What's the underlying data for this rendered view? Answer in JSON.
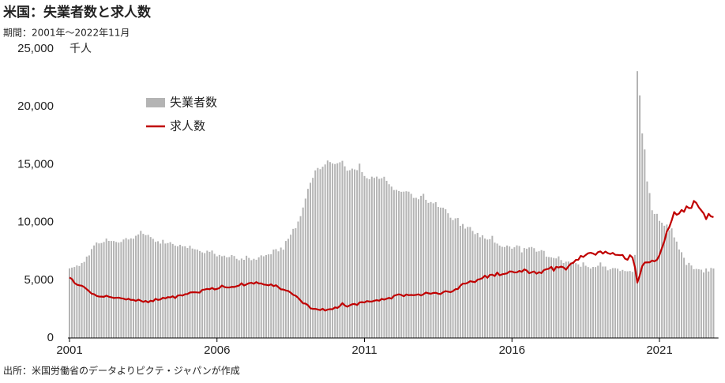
{
  "chart_data": {
    "type": "bar",
    "title": "米国：失業者数と求人数",
    "subtitle": "期間：2001年～2022年11月",
    "y_unit": "千人",
    "source": "出所：米国労働省のデータよりピクテ・ジャパンが作成",
    "legend": "upper left",
    "xlim": [
      2001,
      2023
    ],
    "xticks": [
      2001,
      2006,
      2011,
      2016,
      2021
    ],
    "ylim": [
      0,
      25000
    ],
    "yticks": [
      0,
      {
        "value": 5000,
        "label": "5,000"
      },
      {
        "value": 10000,
        "label": "10,000"
      },
      {
        "value": 15000,
        "label": "15,000"
      },
      {
        "value": 20000,
        "label": "20,000"
      },
      {
        "value": 25000,
        "label": "25,000"
      }
    ],
    "x": [
      2001,
      2001.083,
      2001.167,
      2001.25,
      2001.333,
      2001.417,
      2001.5,
      2001.583,
      2001.667,
      2001.75,
      2001.833,
      2001.917,
      2002,
      2002.083,
      2002.167,
      2002.25,
      2002.333,
      2002.417,
      2002.5,
      2002.583,
      2002.667,
      2002.75,
      2002.833,
      2002.917,
      2003,
      2003.083,
      2003.167,
      2003.25,
      2003.333,
      2003.417,
      2003.5,
      2003.583,
      2003.667,
      2003.75,
      2003.833,
      2003.917,
      2004,
      2004.083,
      2004.167,
      2004.25,
      2004.333,
      2004.417,
      2004.5,
      2004.583,
      2004.667,
      2004.75,
      2004.833,
      2004.917,
      2005,
      2005.083,
      2005.167,
      2005.25,
      2005.333,
      2005.417,
      2005.5,
      2005.583,
      2005.667,
      2005.75,
      2005.833,
      2005.917,
      2006,
      2006.083,
      2006.167,
      2006.25,
      2006.333,
      2006.417,
      2006.5,
      2006.583,
      2006.667,
      2006.75,
      2006.833,
      2006.917,
      2007,
      2007.083,
      2007.167,
      2007.25,
      2007.333,
      2007.417,
      2007.5,
      2007.583,
      2007.667,
      2007.75,
      2007.833,
      2007.917,
      2008,
      2008.083,
      2008.167,
      2008.25,
      2008.333,
      2008.417,
      2008.5,
      2008.583,
      2008.667,
      2008.75,
      2008.833,
      2008.917,
      2009,
      2009.083,
      2009.167,
      2009.25,
      2009.333,
      2009.417,
      2009.5,
      2009.583,
      2009.667,
      2009.75,
      2009.833,
      2009.917,
      2010,
      2010.083,
      2010.167,
      2010.25,
      2010.333,
      2010.417,
      2010.5,
      2010.583,
      2010.667,
      2010.75,
      2010.833,
      2010.917,
      2011,
      2011.083,
      2011.167,
      2011.25,
      2011.333,
      2011.417,
      2011.5,
      2011.583,
      2011.667,
      2011.75,
      2011.833,
      2011.917,
      2012,
      2012.083,
      2012.167,
      2012.25,
      2012.333,
      2012.417,
      2012.5,
      2012.583,
      2012.667,
      2012.75,
      2012.833,
      2012.917,
      2013,
      2013.083,
      2013.167,
      2013.25,
      2013.333,
      2013.417,
      2013.5,
      2013.583,
      2013.667,
      2013.75,
      2013.833,
      2013.917,
      2014,
      2014.083,
      2014.167,
      2014.25,
      2014.333,
      2014.417,
      2014.5,
      2014.583,
      2014.667,
      2014.75,
      2014.833,
      2014.917,
      2015,
      2015.083,
      2015.167,
      2015.25,
      2015.333,
      2015.417,
      2015.5,
      2015.583,
      2015.667,
      2015.75,
      2015.833,
      2015.917,
      2016,
      2016.083,
      2016.167,
      2016.25,
      2016.333,
      2016.417,
      2016.5,
      2016.583,
      2016.667,
      2016.75,
      2016.833,
      2016.917,
      2017,
      2017.083,
      2017.167,
      2017.25,
      2017.333,
      2017.417,
      2017.5,
      2017.583,
      2017.667,
      2017.75,
      2017.833,
      2017.917,
      2018,
      2018.083,
      2018.167,
      2018.25,
      2018.333,
      2018.417,
      2018.5,
      2018.583,
      2018.667,
      2018.75,
      2018.833,
      2018.917,
      2019,
      2019.083,
      2019.167,
      2019.25,
      2019.333,
      2019.417,
      2019.5,
      2019.583,
      2019.667,
      2019.75,
      2019.833,
      2019.917,
      2020,
      2020.083,
      2020.167,
      2020.25,
      2020.333,
      2020.417,
      2020.5,
      2020.583,
      2020.667,
      2020.75,
      2020.833,
      2020.917,
      2021,
      2021.083,
      2021.167,
      2021.25,
      2021.333,
      2021.417,
      2021.5,
      2021.583,
      2021.667,
      2021.75,
      2021.833,
      2021.917,
      2022,
      2022.083,
      2022.167,
      2022.25,
      2022.333,
      2022.417,
      2022.5,
      2022.583,
      2022.667,
      2022.75,
      2022.833
    ],
    "series": [
      {
        "name": "失業者数",
        "type": "bar",
        "color": "#b4b4b4",
        "values": [
          6023,
          6089,
          6141,
          6271,
          6226,
          6484,
          6583,
          7042,
          7142,
          7694,
          8003,
          8258,
          8182,
          8215,
          8304,
          8599,
          8399,
          8393,
          8390,
          8304,
          8251,
          8307,
          8520,
          8640,
          8520,
          8618,
          8588,
          8842,
          8957,
          9266,
          9011,
          8896,
          8921,
          8732,
          8576,
          8317,
          8370,
          8167,
          8491,
          8170,
          8212,
          8286,
          8136,
          7990,
          7927,
          8061,
          7932,
          7934,
          7784,
          7980,
          7737,
          7672,
          7651,
          7524,
          7406,
          7345,
          7553,
          7453,
          7566,
          7279,
          7064,
          7184,
          7072,
          7120,
          6980,
          7001,
          7175,
          7091,
          6847,
          6727,
          6872,
          6762,
          7116,
          6927,
          6731,
          6850,
          6766,
          6979,
          7149,
          7067,
          7170,
          7237,
          7240,
          7645,
          7685,
          7497,
          7822,
          7637,
          8395,
          8575,
          8937,
          9438,
          9494,
          10074,
          10538,
          11286,
          12058,
          12898,
          13426,
          13853,
          14499,
          14707,
          14601,
          14814,
          15009,
          15352,
          15219,
          15098,
          15046,
          15113,
          15202,
          15325,
          14849,
          14474,
          14512,
          14648,
          14579,
          14516,
          15081,
          14348,
          14013,
          13820,
          13737,
          13957,
          13855,
          13962,
          13763,
          13818,
          13948,
          13594,
          13302,
          13093,
          12797,
          12813,
          12713,
          12646,
          12660,
          12692,
          12656,
          12471,
          12115,
          12124,
          12005,
          12298,
          12471,
          11950,
          11689,
          11760,
          11654,
          11751,
          11335,
          11279,
          11270,
          11136,
          10787,
          10404,
          10202,
          10349,
          10380,
          9702,
          9859,
          9460,
          9608,
          9599,
          9262,
          8990,
          9090,
          8717,
          8885,
          8599,
          8515,
          8550,
          8834,
          8247,
          8167,
          7992,
          7891,
          7868,
          7999,
          7917,
          7725,
          7847,
          8011,
          7954,
          7406,
          7781,
          7722,
          7835,
          7875,
          7768,
          7465,
          7504,
          7603,
          7534,
          7039,
          7003,
          6978,
          6920,
          6884,
          7061,
          6742,
          6491,
          6602,
          6617,
          6525,
          6612,
          6472,
          6367,
          6164,
          6539,
          6250,
          6138,
          6004,
          6147,
          6136,
          6250,
          6535,
          6181,
          6183,
          5853,
          5950,
          6047,
          6042,
          5994,
          5789,
          5890,
          5789,
          5766,
          5796,
          5717,
          7185,
          23078,
          20985,
          17697,
          16308,
          13542,
          12535,
          11049,
          10728,
          10736,
          10130,
          9972,
          9710,
          9812,
          9316,
          9484,
          8702,
          8338,
          7655,
          7418,
          6937,
          6314,
          6499,
          6270,
          5952,
          5975,
          5949,
          5909,
          5670,
          6014,
          5753,
          6059,
          6011
        ]
      },
      {
        "name": "求人数",
        "type": "line",
        "color": "#c00000",
        "values": [
          5234,
          5097,
          4762,
          4615,
          4554,
          4520,
          4401,
          4223,
          4033,
          3834,
          3784,
          3644,
          3581,
          3577,
          3562,
          3659,
          3566,
          3519,
          3460,
          3480,
          3489,
          3437,
          3402,
          3322,
          3395,
          3290,
          3294,
          3207,
          3318,
          3225,
          3121,
          3208,
          3079,
          3227,
          3173,
          3389,
          3296,
          3337,
          3480,
          3424,
          3536,
          3512,
          3612,
          3453,
          3664,
          3701,
          3672,
          3785,
          3804,
          3936,
          3952,
          3957,
          3940,
          3928,
          4164,
          4187,
          4247,
          4218,
          4330,
          4201,
          4244,
          4322,
          4537,
          4409,
          4370,
          4368,
          4421,
          4412,
          4475,
          4536,
          4736,
          4538,
          4638,
          4736,
          4775,
          4692,
          4836,
          4713,
          4719,
          4626,
          4597,
          4552,
          4642,
          4484,
          4570,
          4388,
          4210,
          4193,
          4115,
          4060,
          3919,
          3733,
          3655,
          3479,
          3245,
          2996,
          2976,
          2837,
          2568,
          2520,
          2522,
          2462,
          2414,
          2525,
          2369,
          2457,
          2498,
          2488,
          2646,
          2599,
          2764,
          3017,
          2812,
          2705,
          2819,
          2921,
          2946,
          2848,
          3073,
          3100,
          3070,
          3197,
          3151,
          3151,
          3224,
          3275,
          3223,
          3384,
          3316,
          3397,
          3468,
          3403,
          3651,
          3722,
          3782,
          3720,
          3607,
          3763,
          3700,
          3723,
          3702,
          3731,
          3777,
          3677,
          3785,
          3933,
          3867,
          3825,
          3896,
          3910,
          3829,
          3800,
          3962,
          4054,
          4006,
          3963,
          4055,
          4216,
          4240,
          4522,
          4700,
          4700,
          4773,
          4913,
          4866,
          4831,
          5043,
          5095,
          5178,
          5397,
          5205,
          5462,
          5479,
          5356,
          5668,
          5419,
          5509,
          5547,
          5592,
          5753,
          5748,
          5670,
          5672,
          5802,
          5727,
          5936,
          5841,
          5601,
          5680,
          5755,
          5559,
          5693,
          5612,
          5875,
          5948,
          5989,
          6157,
          5812,
          6150,
          6097,
          6177,
          6102,
          5906,
          6203,
          6439,
          6512,
          6753,
          6766,
          7103,
          7007,
          7176,
          7331,
          7374,
          7306,
          7193,
          7425,
          7491,
          7299,
          7474,
          7336,
          7267,
          7362,
          7195,
          7185,
          7159,
          7185,
          6863,
          6762,
          7160,
          6966,
          6154,
          4791,
          5414,
          6223,
          6525,
          6540,
          6543,
          6700,
          6631,
          6766,
          7165,
          7768,
          8376,
          9211,
          9586,
          10185,
          10895,
          10654,
          10765,
          11075,
          10916,
          11388,
          11234,
          11243,
          11855,
          11681,
          11303,
          11040,
          10768,
          10280,
          10737,
          10512,
          10458
        ]
      }
    ]
  }
}
